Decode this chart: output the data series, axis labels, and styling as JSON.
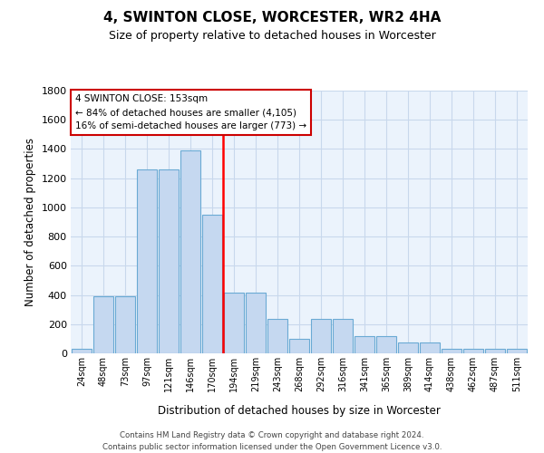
{
  "title": "4, SWINTON CLOSE, WORCESTER, WR2 4HA",
  "subtitle": "Size of property relative to detached houses in Worcester",
  "xlabel": "Distribution of detached houses by size in Worcester",
  "ylabel": "Number of detached properties",
  "categories": [
    "24sqm",
    "48sqm",
    "73sqm",
    "97sqm",
    "121sqm",
    "146sqm",
    "170sqm",
    "194sqm",
    "219sqm",
    "243sqm",
    "268sqm",
    "292sqm",
    "316sqm",
    "341sqm",
    "365sqm",
    "389sqm",
    "414sqm",
    "438sqm",
    "462sqm",
    "487sqm",
    "511sqm"
  ],
  "values": [
    30,
    390,
    390,
    1260,
    1260,
    1390,
    950,
    415,
    415,
    235,
    100,
    235,
    235,
    120,
    120,
    75,
    75,
    30,
    30,
    30,
    30
  ],
  "bar_color": "#C5D8F0",
  "bar_edgecolor": "#6AAAD4",
  "red_line_index": 6.5,
  "property_label": "4 SWINTON CLOSE: 153sqm",
  "annotation_line1": "← 84% of detached houses are smaller (4,105)",
  "annotation_line2": "16% of semi-detached houses are larger (773) →",
  "ylim": [
    0,
    1800
  ],
  "yticks": [
    0,
    200,
    400,
    600,
    800,
    1000,
    1200,
    1400,
    1600,
    1800
  ],
  "background_color": "#EBF3FC",
  "grid_color": "#C8D8EC",
  "footer_line1": "Contains HM Land Registry data © Crown copyright and database right 2024.",
  "footer_line2": "Contains public sector information licensed under the Open Government Licence v3.0."
}
